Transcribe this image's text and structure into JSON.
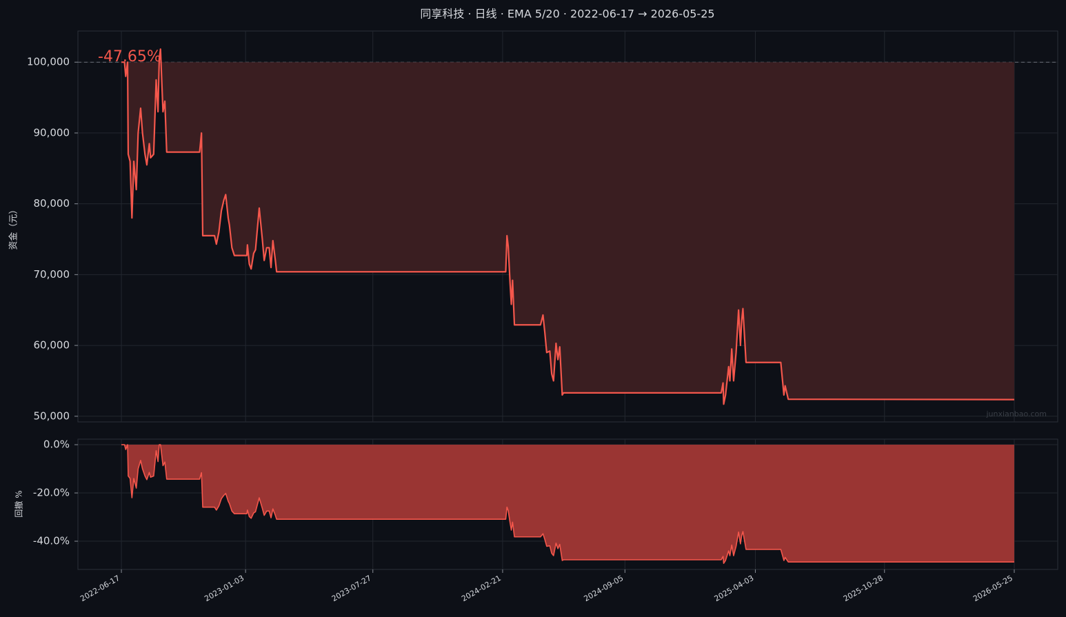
{
  "chart_data": {
    "type": "line",
    "title": "同享科技 · 日线 · EMA 5/20 · 2022-06-17 → 2026-05-25",
    "ylabel": "资金（元）",
    "y2label": "回撤 %",
    "annotation": "-47.65%",
    "watermark": "junxianbao.com",
    "reference_line": 100000,
    "grid": true,
    "x": [
      "2022-06-17",
      "2022-06-22",
      "2022-06-24",
      "2022-06-27",
      "2022-06-28",
      "2022-07-01",
      "2022-07-04",
      "2022-07-07",
      "2022-07-11",
      "2022-07-14",
      "2022-07-18",
      "2022-07-21",
      "2022-07-25",
      "2022-07-28",
      "2022-08-01",
      "2022-08-03",
      "2022-08-08",
      "2022-08-12",
      "2022-08-15",
      "2022-08-17",
      "2022-08-19",
      "2022-08-23",
      "2022-08-26",
      "2022-08-29",
      "2022-10-21",
      "2022-10-24",
      "2022-10-26",
      "2022-11-14",
      "2022-11-17",
      "2022-11-21",
      "2022-11-25",
      "2022-11-29",
      "2022-12-02",
      "2022-12-06",
      "2022-12-08",
      "2022-12-12",
      "2022-12-16",
      "2023-01-05",
      "2023-01-06",
      "2023-01-09",
      "2023-01-12",
      "2023-01-16",
      "2023-01-19",
      "2023-01-25",
      "2023-01-30",
      "2023-02-02",
      "2023-02-06",
      "2023-02-10",
      "2023-02-13",
      "2023-02-16",
      "2023-02-20",
      "2023-02-22",
      "2024-02-26",
      "2024-02-28",
      "2024-03-01",
      "2024-03-04",
      "2024-03-06",
      "2024-03-08",
      "2024-03-11",
      "2024-04-22",
      "2024-04-26",
      "2024-04-29",
      "2024-05-02",
      "2024-05-07",
      "2024-05-10",
      "2024-05-13",
      "2024-05-17",
      "2024-05-20",
      "2024-05-23",
      "2024-05-27",
      "2024-05-29",
      "2025-02-07",
      "2025-02-10",
      "2025-02-11",
      "2025-02-14",
      "2025-02-19",
      "2025-02-21",
      "2025-02-24",
      "2025-02-27",
      "2025-03-03",
      "2025-03-07",
      "2025-03-10",
      "2025-03-12",
      "2025-03-14",
      "2025-03-19",
      "2025-05-14",
      "2025-05-19",
      "2025-05-21",
      "2025-05-26",
      "2026-05-25"
    ],
    "xlim": [
      "2022-04-08",
      "2026-08-03"
    ],
    "xticks": [
      "2022-06-17",
      "2023-01-03",
      "2023-07-27",
      "2024-02-21",
      "2024-09-05",
      "2025-04-03",
      "2025-10-28",
      "2026-05-25"
    ],
    "ylim": [
      49200,
      104400
    ],
    "yticks": [
      {
        "value": 50000,
        "label": "50,000"
      },
      {
        "value": 60000,
        "label": "60,000"
      },
      {
        "value": 70000,
        "label": "70,000"
      },
      {
        "value": 80000,
        "label": "80,000"
      },
      {
        "value": 90000,
        "label": "90,000"
      },
      {
        "value": 100000,
        "label": "100,000"
      }
    ],
    "y2lim": [
      -51.7,
      2.3
    ],
    "y2ticks": [
      {
        "value": -40,
        "label": "-40.0%"
      },
      {
        "value": -20,
        "label": "-20.0%"
      },
      {
        "value": 0,
        "label": "0.0%"
      }
    ],
    "series": [
      {
        "color": "#f4574c",
        "axis": "y",
        "values": [
          100000,
          100000,
          98000,
          100000,
          87000,
          86000,
          78000,
          86000,
          82000,
          90000,
          93500,
          90000,
          87000,
          85500,
          88500,
          86500,
          87000,
          97500,
          93000,
          100500,
          101850,
          93000,
          94500,
          87300,
          87300,
          90000,
          75500,
          75500,
          74300,
          76000,
          79000,
          80500,
          81300,
          78000,
          77000,
          73800,
          72700,
          72700,
          74200,
          71500,
          70800,
          73000,
          73500,
          79400,
          75000,
          72000,
          73800,
          73800,
          71000,
          74800,
          72000,
          70400,
          70400,
          75500,
          74000,
          68800,
          65800,
          69200,
          62900,
          62900,
          64300,
          61800,
          59000,
          59200,
          56000,
          55000,
          60300,
          58000,
          59800,
          53000,
          53300,
          53300,
          54700,
          51700,
          53000,
          57000,
          55000,
          59500,
          55000,
          59000,
          65000,
          60000,
          63500,
          65200,
          57600,
          57600,
          53000,
          54300,
          52400,
          52350
        ]
      },
      {
        "color": "#f4574c",
        "axis": "y2",
        "values": [
          0,
          0,
          -2,
          0,
          -13,
          -14,
          -22,
          -14,
          -18,
          -10,
          -6.5,
          -10,
          -13,
          -14.5,
          -11.5,
          -13.5,
          -13,
          -2.5,
          -7,
          0,
          0,
          -8.7,
          -7.2,
          -14.3,
          -14.3,
          -11.6,
          -25.9,
          -25.9,
          -27.1,
          -25.4,
          -22.4,
          -21,
          -20.2,
          -23.4,
          -24.4,
          -27.5,
          -28.6,
          -28.6,
          -27.1,
          -29.8,
          -30.5,
          -28.3,
          -27.8,
          -22,
          -26.4,
          -29.3,
          -27.5,
          -27.5,
          -30.3,
          -26.6,
          -29.3,
          -30.9,
          -30.9,
          -25.9,
          -27.3,
          -32.4,
          -35.4,
          -32.1,
          -38.2,
          -38.2,
          -36.9,
          -39.3,
          -42.1,
          -41.9,
          -45,
          -46,
          -40.8,
          -43.1,
          -41.3,
          -48,
          -47.7,
          -47.7,
          -46.3,
          -49.2,
          -48,
          -44,
          -46,
          -41.6,
          -46,
          -42.1,
          -36.2,
          -41.1,
          -37.7,
          -36,
          -43.4,
          -43.4,
          -48,
          -46.7,
          -48.6,
          -48.6
        ]
      }
    ]
  }
}
